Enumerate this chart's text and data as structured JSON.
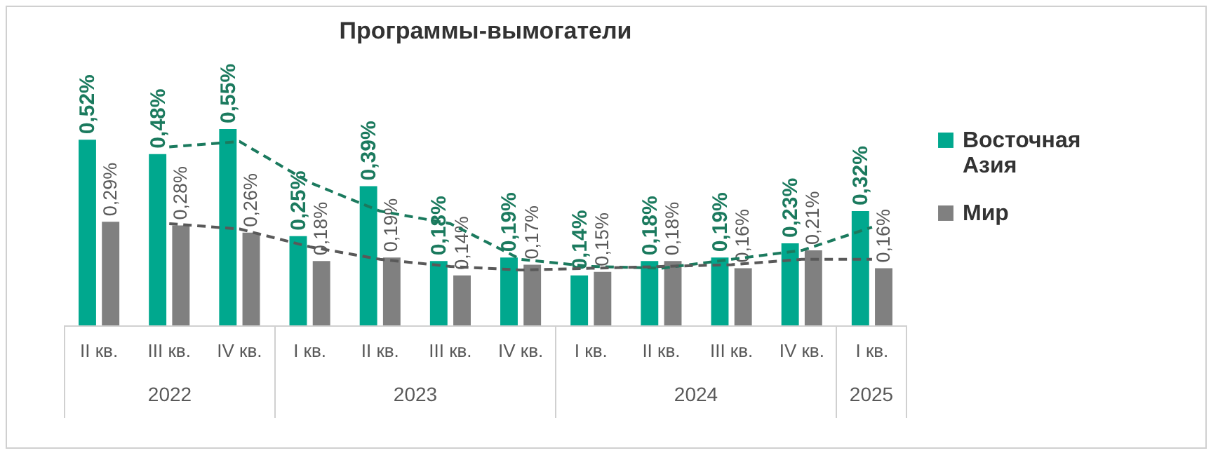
{
  "chart_data": {
    "type": "bar",
    "title": "Программы-вымогатели",
    "categories": [
      "II кв.",
      "III кв.",
      "IV кв.",
      "I кв.",
      "II кв.",
      "III кв.",
      "IV кв.",
      "I кв.",
      "II кв.",
      "III кв.",
      "IV кв.",
      "I кв."
    ],
    "series": [
      {
        "name": "Восточная Азия",
        "color": "#00a88e",
        "values": [
          0.52,
          0.48,
          0.55,
          0.25,
          0.39,
          0.18,
          0.19,
          0.14,
          0.18,
          0.19,
          0.23,
          0.32
        ],
        "value_labels": [
          "0,52%",
          "0,48%",
          "0,55%",
          "0,25%",
          "0,39%",
          "0,18%",
          "0,19%",
          "0,14%",
          "0,18%",
          "0,19%",
          "0,23%",
          "0,32%"
        ]
      },
      {
        "name": "Мир",
        "color": "#808080",
        "values": [
          0.29,
          0.28,
          0.26,
          0.18,
          0.19,
          0.14,
          0.17,
          0.15,
          0.18,
          0.16,
          0.21,
          0.16
        ],
        "value_labels": [
          "0,29%",
          "0,28%",
          "0,26%",
          "0,18%",
          "0,19%",
          "0,14%",
          "0,17%",
          "0,15%",
          "0,18%",
          "0,16%",
          "0,21%",
          "0,16%"
        ]
      },
      {
        "type": "line",
        "color": "#1b7a5e",
        "line_style": "dashed",
        "values": [
          null,
          0.5,
          0.515,
          0.4,
          0.32,
          0.285,
          0.185,
          0.165,
          0.16,
          0.185,
          0.21,
          0.275
        ]
      },
      {
        "type": "line",
        "color": "#595959",
        "line_style": "dashed",
        "values": [
          null,
          0.285,
          0.27,
          0.22,
          0.185,
          0.165,
          0.155,
          0.16,
          0.165,
          0.17,
          0.185,
          0.185
        ]
      }
    ],
    "annotations": [
      "2022",
      "2023",
      "2024",
      "2025"
    ],
    "legend": "right",
    "grid": false
  }
}
